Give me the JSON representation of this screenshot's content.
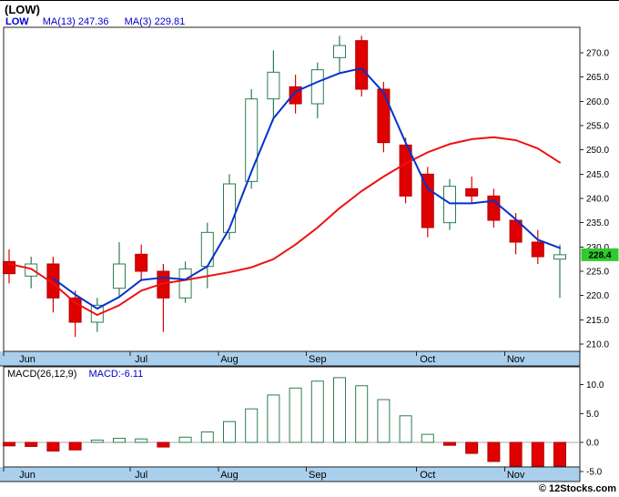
{
  "header": {
    "title": "(LOW)",
    "legend": {
      "symbol": "LOW",
      "ma13_label": "MA(13)",
      "ma13_value": "247.36",
      "ma3_label": "MA(3)",
      "ma3_value": "229.81"
    }
  },
  "macd_header": {
    "label": "MACD(26,12,9)",
    "value_label": "MACD:-6.11"
  },
  "copyright": "© 12Stocks.com",
  "colors": {
    "up": "#2e7d50",
    "down": "#e00000",
    "down_stroke": "#b00000",
    "ma_slow_red": "#ee1111",
    "ma_fast_blue": "#0033cc",
    "band": "#a9cfec",
    "tag_bg": "#2ecc2e",
    "border": "#222222",
    "zero_line": "#aaaaaa",
    "legend_blue": "#0000cc"
  },
  "chart_data": [
    {
      "type": "candlestick",
      "symbol": "LOW",
      "timeframe": "weekly",
      "y_axis": {
        "ticks": [
          270,
          265,
          260,
          255,
          250,
          245,
          240,
          235,
          230,
          225,
          220,
          215,
          210
        ],
        "range": [
          208.5,
          275.2
        ]
      },
      "months": [
        {
          "label": "Jun",
          "start": 0
        },
        {
          "label": "Jul",
          "start": 6
        },
        {
          "label": "Aug",
          "start": 10
        },
        {
          "label": "Sep",
          "start": 14
        },
        {
          "label": "Oct",
          "start": 19
        },
        {
          "label": "Nov",
          "start": 23
        }
      ],
      "candles": [
        [
          227.0,
          229.5,
          222.5,
          224.5
        ],
        [
          224.0,
          228.0,
          221.5,
          226.5
        ],
        [
          226.5,
          228.0,
          216.5,
          219.5
        ],
        [
          219.5,
          221.0,
          211.5,
          214.5
        ],
        [
          214.5,
          219.5,
          212.5,
          218.0
        ],
        [
          221.5,
          231.0,
          219.5,
          226.5
        ],
        [
          228.5,
          230.5,
          223.0,
          225.0
        ],
        [
          225.0,
          226.5,
          212.5,
          219.5
        ],
        [
          219.5,
          227.0,
          218.5,
          225.5
        ],
        [
          226.0,
          235.0,
          221.5,
          233.0
        ],
        [
          233.0,
          245.0,
          231.5,
          243.0
        ],
        [
          243.5,
          262.5,
          242.0,
          260.5
        ],
        [
          260.5,
          270.5,
          256.0,
          266.0
        ],
        [
          263.0,
          265.5,
          257.5,
          259.5
        ],
        [
          259.5,
          268.0,
          256.5,
          266.5
        ],
        [
          269.0,
          273.5,
          266.0,
          271.5
        ],
        [
          272.5,
          273.5,
          261.0,
          262.5
        ],
        [
          262.5,
          264.0,
          249.5,
          251.5
        ],
        [
          251.0,
          252.5,
          239.0,
          240.5
        ],
        [
          245.0,
          246.5,
          232.0,
          234.0
        ],
        [
          235.0,
          244.0,
          233.5,
          242.5
        ],
        [
          242.0,
          244.5,
          239.0,
          240.5
        ],
        [
          240.5,
          242.0,
          234.0,
          235.5
        ],
        [
          235.5,
          237.0,
          228.5,
          231.0
        ],
        [
          231.0,
          233.5,
          226.5,
          228.0
        ],
        [
          227.5,
          230.5,
          219.5,
          228.4
        ]
      ],
      "overlays": [
        {
          "name": "MA(13)",
          "period": 13,
          "color_key": "ma_slow_red",
          "last_value": 247.36,
          "values": [
            226.5,
            225.5,
            222.5,
            218.5,
            216.0,
            218.0,
            221.0,
            222.5,
            223.2,
            224.0,
            224.8,
            225.8,
            227.5,
            230.5,
            234.0,
            238.0,
            241.5,
            244.5,
            247.2,
            249.5,
            251.2,
            252.2,
            252.6,
            252.0,
            250.3,
            247.4
          ]
        },
        {
          "name": "MA(3)",
          "period": 3,
          "color_key": "ma_fast_blue",
          "last_value": 229.81,
          "values": [
            null,
            null,
            223.5,
            220.2,
            217.3,
            219.7,
            223.2,
            223.7,
            223.3,
            226.0,
            233.8,
            245.5,
            256.5,
            262.0,
            264.0,
            265.8,
            266.8,
            261.8,
            251.5,
            242.0,
            239.0,
            239.0,
            239.5,
            235.7,
            231.5,
            229.8
          ]
        }
      ],
      "last_price": 228.4,
      "last_price_label": "228.4"
    },
    {
      "type": "bar",
      "name": "MACD(26,12,9)",
      "current": -6.11,
      "y_axis": {
        "ticks": [
          10,
          5,
          0,
          -5
        ]
      },
      "months": [
        {
          "label": "Jun",
          "start": 0
        },
        {
          "label": "Jul",
          "start": 6
        },
        {
          "label": "Aug",
          "start": 10
        },
        {
          "label": "Sep",
          "start": 14
        },
        {
          "label": "Oct",
          "start": 19
        },
        {
          "label": "Nov",
          "start": 23
        }
      ],
      "values": [
        -0.6,
        -0.7,
        -1.5,
        -1.3,
        0.4,
        0.7,
        0.6,
        -0.8,
        0.9,
        1.8,
        3.6,
        5.8,
        8.2,
        9.4,
        10.6,
        11.2,
        9.8,
        7.4,
        4.6,
        1.4,
        -0.5,
        -1.9,
        -3.3,
        -4.7,
        -5.6,
        -6.11
      ]
    }
  ]
}
